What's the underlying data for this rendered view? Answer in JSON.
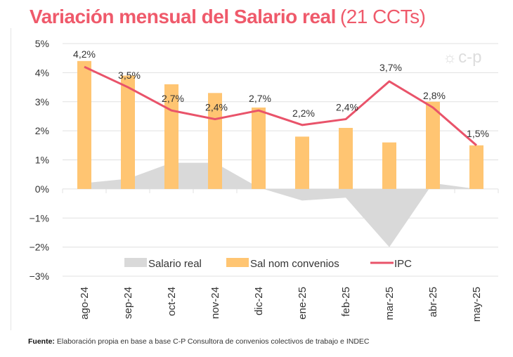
{
  "title": {
    "main": "Variación mensual del Salario real",
    "sub": "(21 CCTs)"
  },
  "logo": "c-p",
  "source": {
    "label": "Fuente:",
    "text": "Elaboración propia en base a base C-P Consultora de convenios colectivos de trabajo e INDEC"
  },
  "colors": {
    "title": "#ef5a6b",
    "salario_real": "#d9d9d9",
    "sal_nom": "#ffc572",
    "ipc": "#e9536a",
    "grid": "#e0e0e0"
  },
  "chart_data": {
    "type": "combo",
    "categories": [
      "ago-24",
      "sep-24",
      "oct-24",
      "nov-24",
      "dic-24",
      "ene-25",
      "feb-25",
      "mar-25",
      "abr-25",
      "may-25"
    ],
    "series": [
      {
        "name": "Salario real",
        "kind": "area",
        "values": [
          0.2,
          0.35,
          0.9,
          0.9,
          0.05,
          -0.4,
          -0.3,
          -2.0,
          0.2,
          0.0
        ]
      },
      {
        "name": "Sal nom convenios",
        "kind": "bar",
        "values": [
          4.4,
          3.9,
          3.6,
          3.3,
          2.8,
          1.8,
          2.1,
          1.6,
          3.0,
          1.5
        ]
      },
      {
        "name": "IPC",
        "kind": "line",
        "values": [
          4.2,
          3.5,
          2.7,
          2.4,
          2.7,
          2.2,
          2.4,
          3.7,
          2.8,
          1.5
        ],
        "labels": [
          "4,2%",
          "3,5%",
          "2,7%",
          "2,4%",
          "2,7%",
          "2,2%",
          "2,4%",
          "3,7%",
          "2,8%",
          "1,5%"
        ]
      }
    ],
    "yticks": [
      5,
      4,
      3,
      2,
      1,
      0,
      -1,
      -2,
      -3
    ],
    "ytick_labels": [
      "5%",
      "4%",
      "3%",
      "2%",
      "1%",
      "0%",
      "−1%",
      "−2%",
      "−3%"
    ],
    "ylim": [
      -3,
      5
    ],
    "grid": true,
    "legend": "bottom-inside"
  }
}
